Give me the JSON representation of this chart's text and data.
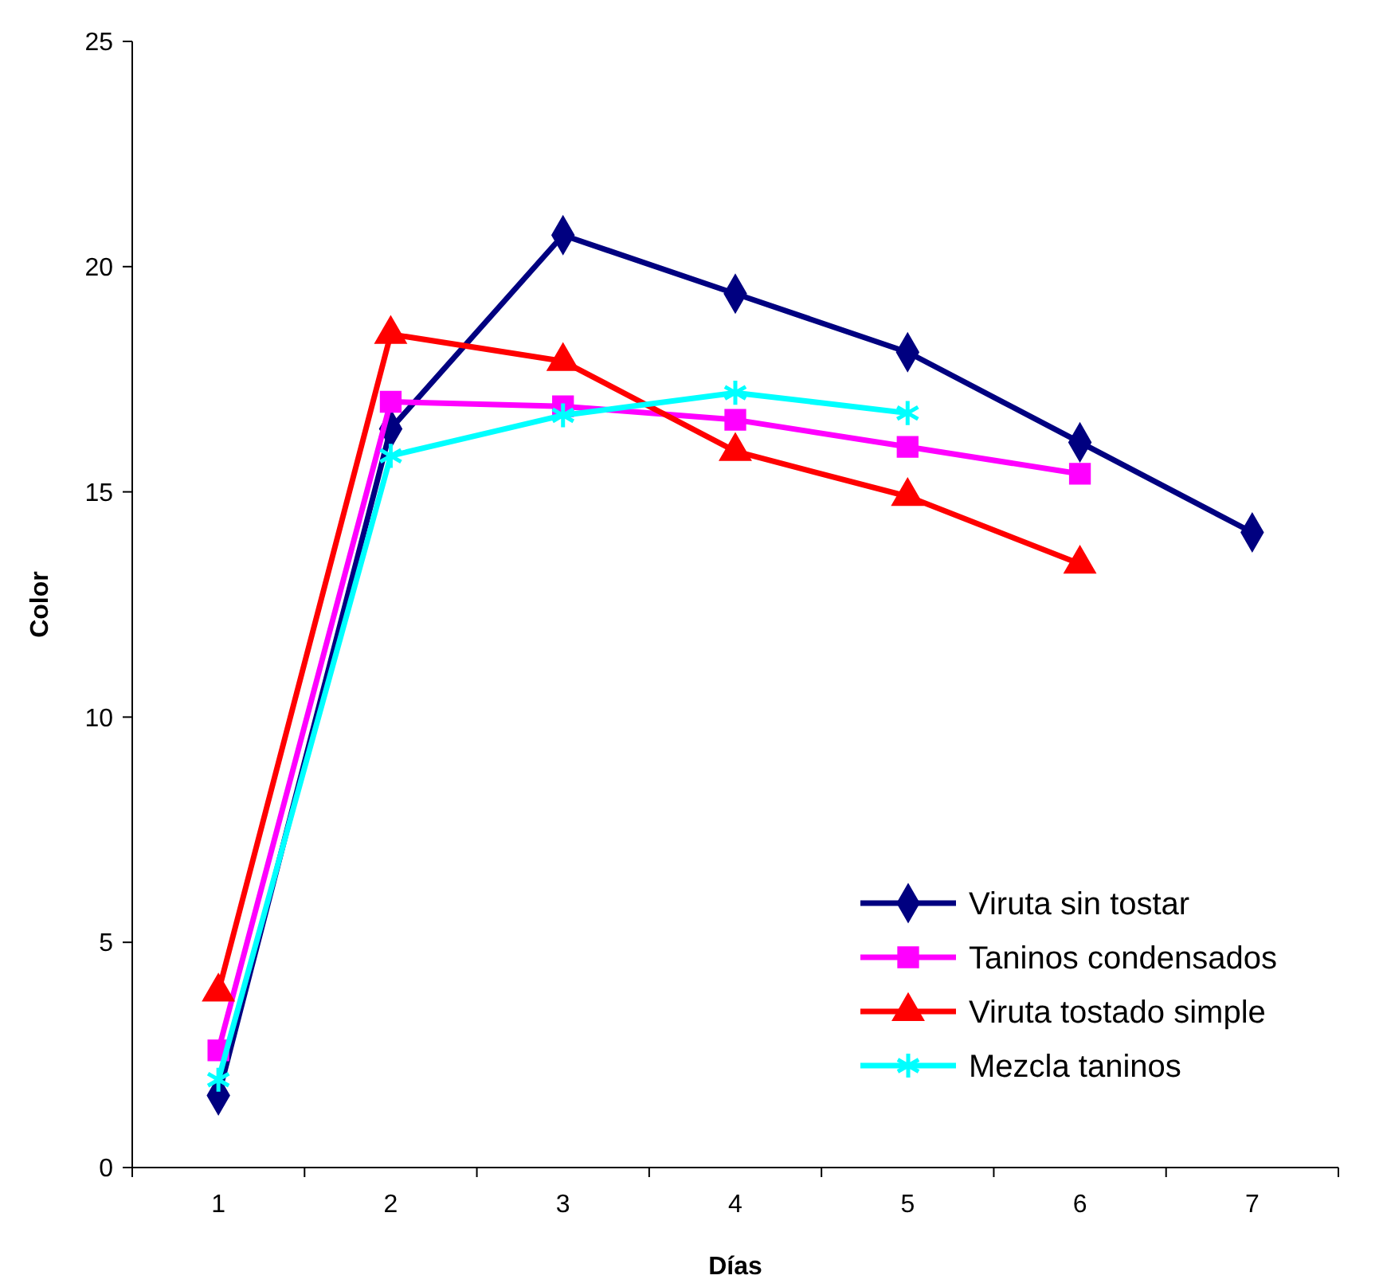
{
  "chart_data": {
    "type": "line",
    "xlabel": "Días",
    "ylabel": "Color",
    "categories": [
      "1",
      "2",
      "3",
      "4",
      "5",
      "6",
      "7"
    ],
    "ylim": [
      0,
      25
    ],
    "yticks": [
      0,
      5,
      10,
      15,
      20,
      25
    ],
    "grid": false,
    "legend": "bottom right",
    "line_style": "solid",
    "series": [
      {
        "name": "Viruta sin tostar",
        "color": "#000080",
        "marker": "diamond",
        "values": [
          1.6,
          16.4,
          20.7,
          19.4,
          18.1,
          16.1,
          14.1
        ]
      },
      {
        "name": "Taninos condensados",
        "color": "#ff00ff",
        "marker": "square",
        "values": [
          2.6,
          17.0,
          16.9,
          16.6,
          16.0,
          15.4,
          null
        ]
      },
      {
        "name": "Viruta tostado simple",
        "color": "#ff0000",
        "marker": "triangle",
        "values": [
          3.9,
          18.5,
          17.9,
          15.9,
          14.9,
          13.4,
          null
        ]
      },
      {
        "name": "Mezcla taninos",
        "color": "#00ffff",
        "marker": "cross",
        "values": [
          1.95,
          15.8,
          16.7,
          17.2,
          16.75,
          null,
          null
        ]
      }
    ]
  }
}
